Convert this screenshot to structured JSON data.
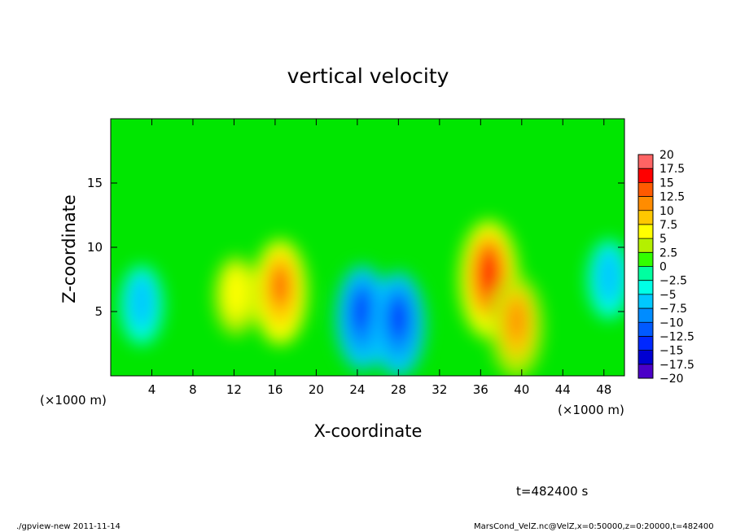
{
  "chart_data": {
    "type": "heatmap",
    "title": "vertical velocity",
    "xlabel": "X-coordinate",
    "ylabel": "Z-coordinate",
    "x_multiplier_label": "(×1000 m)",
    "x_ticks": [
      4,
      8,
      12,
      16,
      20,
      24,
      28,
      32,
      36,
      40,
      44,
      48
    ],
    "y_ticks": [
      5,
      10,
      15
    ],
    "xlim": [
      0,
      50
    ],
    "ylim": [
      0,
      20
    ],
    "colorbar": {
      "levels": [
        -20,
        -17.5,
        -15,
        -12.5,
        -10,
        -7.5,
        -5,
        -2.5,
        0,
        2.5,
        5,
        7.5,
        10,
        12.5,
        15,
        17.5,
        20
      ],
      "labels": [
        "20",
        "17.5",
        "15",
        "12.5",
        "10",
        "7.5",
        "5",
        "2.5",
        "0",
        "−2.5",
        "−5",
        "−7.5",
        "−10",
        "−12.5",
        "−15",
        "−17.5",
        "−20"
      ]
    },
    "features": [
      {
        "kind": "updraft",
        "x": 16.5,
        "z": 6.5,
        "peak": 12.5
      },
      {
        "kind": "updraft",
        "x": 12.2,
        "z": 6.2,
        "peak": 7.5
      },
      {
        "kind": "downdraft",
        "x": 24.5,
        "z": 4.5,
        "peak": -12.5
      },
      {
        "kind": "downdraft",
        "x": 28.0,
        "z": 4.0,
        "peak": -12.5
      },
      {
        "kind": "updraft",
        "x": 36.8,
        "z": 7.5,
        "peak": 15.0
      },
      {
        "kind": "updraft",
        "x": 39.5,
        "z": 3.8,
        "peak": 12.0
      },
      {
        "kind": "downdraft",
        "x": 3.0,
        "z": 5.5,
        "peak": -7.5
      },
      {
        "kind": "downdraft",
        "x": 48.5,
        "z": 7.5,
        "peak": -7.5
      }
    ]
  },
  "annotations": {
    "time": "t=482400 s",
    "footer_left": "./gpview-new  2011-11-14",
    "footer_right": "MarsCond_VelZ.nc@VelZ,x=0:50000,z=0:20000,t=482400"
  },
  "colors": {
    "background": "#00e600",
    "colormap": [
      "#7a00b4",
      "#4b00c8",
      "#0000d2",
      "#0028ff",
      "#005aff",
      "#008cff",
      "#00c8ff",
      "#00ffe6",
      "#00ffa0",
      "#00f000",
      "#32ff00",
      "#b4f000",
      "#ffff00",
      "#ffc800",
      "#ff8c00",
      "#ff5a00",
      "#ff0000",
      "#ff6464",
      "#ffa0a0"
    ]
  }
}
